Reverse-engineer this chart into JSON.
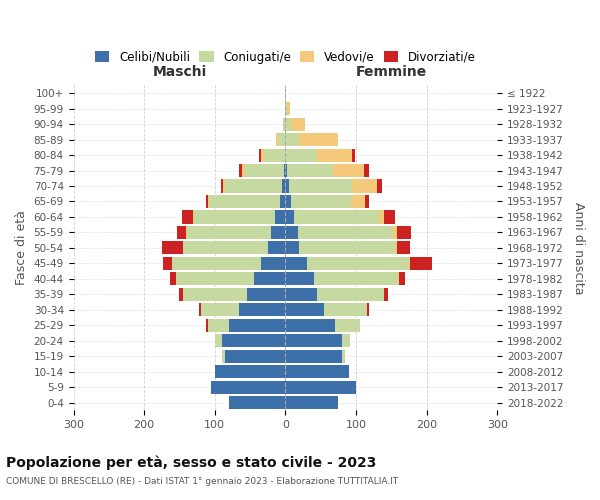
{
  "age_groups": [
    "0-4",
    "5-9",
    "10-14",
    "15-19",
    "20-24",
    "25-29",
    "30-34",
    "35-39",
    "40-44",
    "45-49",
    "50-54",
    "55-59",
    "60-64",
    "65-69",
    "70-74",
    "75-79",
    "80-84",
    "85-89",
    "90-94",
    "95-99",
    "100+"
  ],
  "birth_years": [
    "2018-2022",
    "2013-2017",
    "2008-2012",
    "2003-2007",
    "1998-2002",
    "1993-1997",
    "1988-1992",
    "1983-1987",
    "1978-1982",
    "1973-1977",
    "1968-1972",
    "1963-1967",
    "1958-1962",
    "1953-1957",
    "1948-1952",
    "1943-1947",
    "1938-1942",
    "1933-1937",
    "1928-1932",
    "1923-1927",
    "≤ 1922"
  ],
  "maschi": {
    "celibe": [
      80,
      105,
      100,
      85,
      90,
      80,
      65,
      55,
      45,
      35,
      25,
      20,
      15,
      8,
      5,
      2,
      0,
      0,
      0,
      0,
      0
    ],
    "coniugato": [
      0,
      0,
      0,
      5,
      10,
      30,
      55,
      90,
      110,
      125,
      120,
      120,
      115,
      100,
      80,
      55,
      30,
      10,
      3,
      1,
      0
    ],
    "vedovo": [
      0,
      0,
      0,
      0,
      0,
      0,
      0,
      0,
      0,
      0,
      0,
      1,
      1,
      2,
      3,
      5,
      5,
      3,
      1,
      0,
      0
    ],
    "divorziato": [
      0,
      0,
      0,
      0,
      0,
      2,
      3,
      5,
      8,
      13,
      30,
      13,
      15,
      3,
      3,
      4,
      3,
      0,
      0,
      0,
      0
    ]
  },
  "femmine": {
    "nubile": [
      75,
      100,
      90,
      80,
      80,
      70,
      55,
      45,
      40,
      30,
      20,
      18,
      12,
      8,
      5,
      2,
      0,
      0,
      0,
      0,
      0
    ],
    "coniugata": [
      0,
      0,
      0,
      5,
      12,
      35,
      60,
      95,
      120,
      145,
      135,
      135,
      120,
      85,
      90,
      65,
      45,
      20,
      8,
      3,
      0
    ],
    "vedova": [
      0,
      0,
      0,
      0,
      0,
      0,
      0,
      0,
      1,
      2,
      3,
      5,
      8,
      20,
      35,
      45,
      50,
      55,
      20,
      3,
      1
    ],
    "divorziata": [
      0,
      0,
      0,
      0,
      0,
      1,
      3,
      5,
      8,
      30,
      18,
      20,
      15,
      5,
      7,
      6,
      3,
      0,
      0,
      0,
      0
    ]
  },
  "colors": {
    "celibe": "#3d6fa8",
    "coniugato": "#c5d9a0",
    "vedovo": "#f5c97a",
    "divorziato": "#cc2222"
  },
  "xlim": 300,
  "title": "Popolazione per età, sesso e stato civile - 2023",
  "subtitle": "COMUNE DI BRESCELLO (RE) - Dati ISTAT 1° gennaio 2023 - Elaborazione TUTTITALIA.IT",
  "ylabel_left": "Fasce di età",
  "ylabel_right": "Anni di nascita",
  "xlabel_left": "Maschi",
  "xlabel_right": "Femmine",
  "legend_labels": [
    "Celibi/Nubili",
    "Coniugati/e",
    "Vedovi/e",
    "Divorziati/e"
  ],
  "background_color": "#ffffff",
  "grid_color": "#cccccc"
}
